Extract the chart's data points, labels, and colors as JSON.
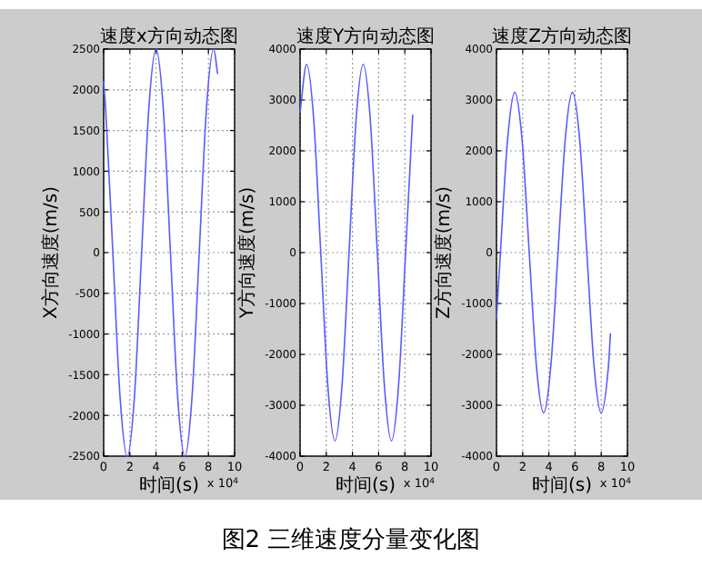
{
  "chart_data": [
    {
      "type": "line",
      "title": "速度x方向动态图",
      "xlabel": "时间(s)",
      "ylabel": "X方向速度(m/s)",
      "xlim": [
        0,
        10
      ],
      "xticks": [
        0,
        2,
        4,
        6,
        8,
        10
      ],
      "ylim": [
        -2500,
        2500
      ],
      "yticks": [
        -2500,
        -2000,
        -1500,
        -1000,
        -500,
        0,
        500,
        1000,
        1500,
        2000,
        2500
      ],
      "grid": true,
      "x": [
        0,
        0.15,
        0.7,
        1.25,
        1.8,
        2.35,
        2.9,
        3.45,
        4.0,
        4.55,
        5.1,
        5.65,
        6.2,
        6.75,
        7.3,
        7.85,
        8.4,
        8.7
      ],
      "series": [
        {
          "color": "#5a5aff",
          "values": [
            2100,
            1770,
            0,
            -1770,
            -2500,
            -1770,
            0,
            1770,
            2500,
            1770,
            0,
            -1770,
            -2500,
            -1770,
            0,
            1770,
            2500,
            2200
          ]
        }
      ],
      "annotations": [
        "x 10$^{4}$",
        "图2  三维速度分量变化图"
      ]
    },
    {
      "type": "line",
      "title": "速度Y方向动态图",
      "xlabel": "时间(s)",
      "ylabel": "Y方向速度(m/s)",
      "xlim": [
        0,
        10
      ],
      "xticks": [
        0,
        2,
        4,
        6,
        8,
        10
      ],
      "ylim": [
        -4000,
        4000
      ],
      "yticks": [
        -4000,
        -3000,
        -2000,
        -1000,
        0,
        1000,
        2000,
        3000,
        4000
      ],
      "grid": true,
      "x": [
        0,
        0.5,
        1.04,
        1.58,
        2.12,
        2.66,
        3.2,
        3.74,
        4.28,
        4.82,
        5.36,
        5.9,
        6.44,
        6.98,
        7.52,
        8.06,
        8.6
      ],
      "series": [
        {
          "color": "#5a5aff",
          "values": [
            2760,
            3700,
            2620,
            0,
            -2620,
            -3700,
            -2620,
            0,
            2620,
            3700,
            2620,
            0,
            -2620,
            -3700,
            -2620,
            0,
            2700
          ]
        }
      ],
      "annotations": [
        "x 10$^{4}$"
      ]
    },
    {
      "type": "line",
      "title": "速度Z方向动态图",
      "xlabel": "时间(s)",
      "ylabel": "Z方向速度(m/s)",
      "xlim": [
        0,
        10
      ],
      "xticks": [
        0,
        2,
        4,
        6,
        8,
        10
      ],
      "ylim": [
        -4000,
        4000
      ],
      "yticks": [
        -4000,
        -3000,
        -2000,
        -1000,
        0,
        1000,
        2000,
        3000,
        4000
      ],
      "grid": true,
      "x": [
        0,
        0.3,
        0.85,
        1.4,
        1.95,
        2.5,
        3.05,
        3.6,
        4.15,
        4.7,
        5.25,
        5.8,
        6.35,
        6.9,
        7.45,
        8.0,
        8.55,
        8.7
      ],
      "series": [
        {
          "color": "#5a5aff",
          "values": [
            -1300,
            0,
            2230,
            3150,
            2230,
            0,
            -2230,
            -3150,
            -2230,
            0,
            2230,
            3150,
            2230,
            0,
            -2230,
            -3150,
            -2230,
            -1600
          ]
        }
      ],
      "annotations": [
        "x 10$^{4}$"
      ]
    }
  ]
}
